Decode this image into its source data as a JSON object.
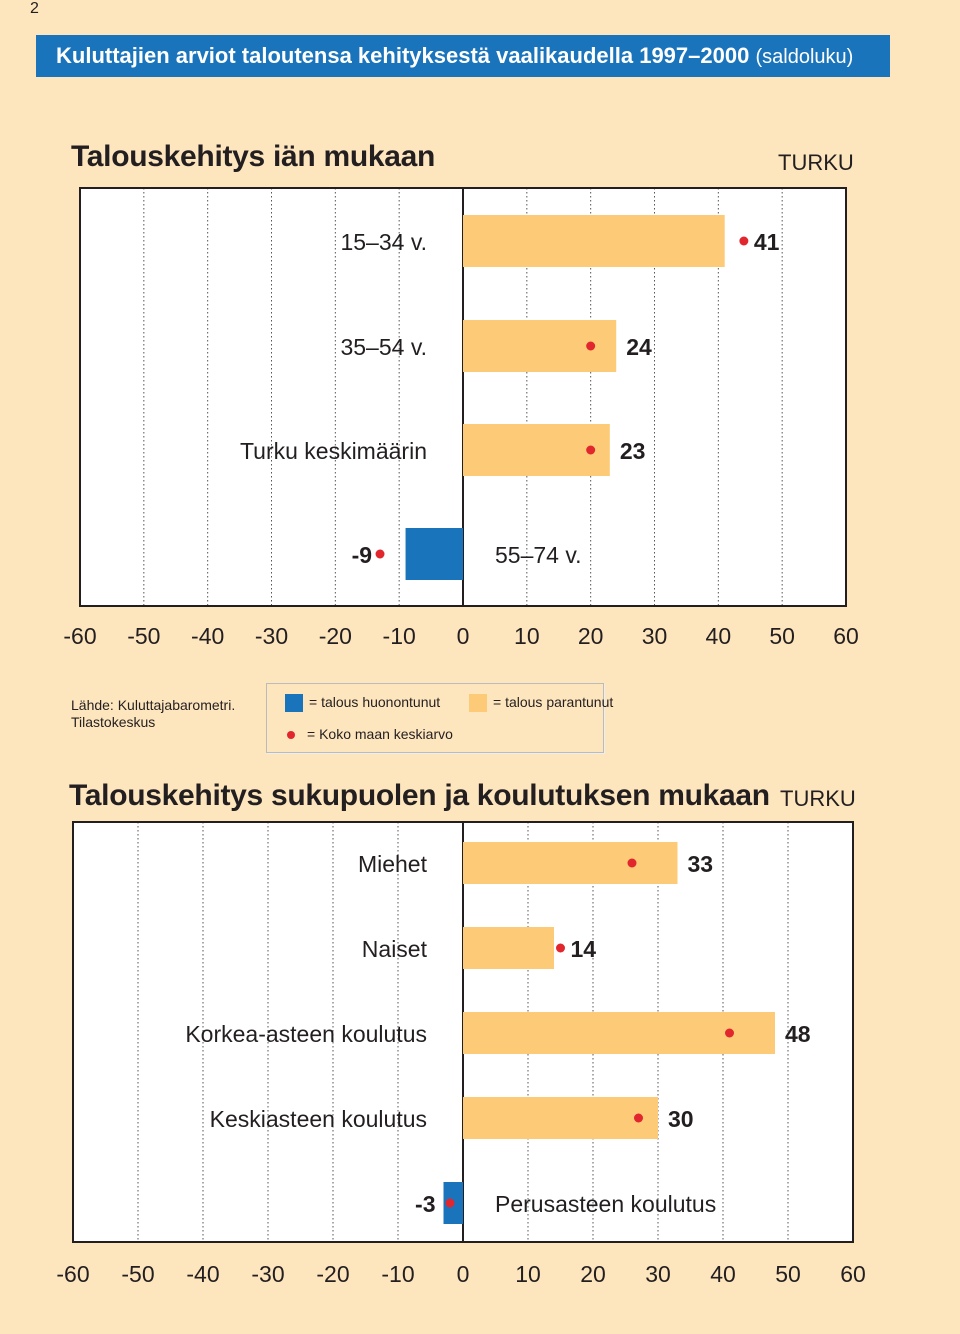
{
  "page_number": "2",
  "banner": {
    "title": "Kuluttajien arviot taloutensa kehityksestä vaalikaudella 1997–2000",
    "subtitle": "(saldoluku)"
  },
  "legend": {
    "decline": "= talous huonontunut",
    "improve": "= talous parantunut",
    "national": "= Koko maan keskiarvo"
  },
  "source": {
    "line1": "Lähde: Kuluttajabarometri.",
    "line2": "Tilastokeskus"
  },
  "colors": {
    "positive": "#fdcb78",
    "negative": "#1a74bc",
    "dot": "#e1262d",
    "background": "#fde5be"
  },
  "chart_data": [
    {
      "type": "bar",
      "orientation": "horizontal",
      "title": "Talouskehitys iän mukaan",
      "city": "TURKU",
      "categories": [
        "15–34 v.",
        "35–54 v.",
        "Turku keskimäärin",
        "55–74 v."
      ],
      "values": [
        41,
        24,
        23,
        -9
      ],
      "national_average": [
        44,
        20,
        20,
        -13
      ],
      "xlim": [
        -60,
        60
      ],
      "ticks": [
        "-60",
        "-50",
        "-40",
        "-30",
        "-20",
        "-10",
        "0",
        "10",
        "20",
        "30",
        "40",
        "50",
        "60"
      ],
      "grid": true
    },
    {
      "type": "bar",
      "orientation": "horizontal",
      "title": "Talouskehitys sukupuolen ja koulutuksen mukaan",
      "city": "TURKU",
      "categories": [
        "Miehet",
        "Naiset",
        "Korkea-asteen koulutus",
        "Keskiasteen koulutus",
        "Perusasteen koulutus"
      ],
      "values": [
        33,
        14,
        48,
        30,
        -3
      ],
      "national_average": [
        26,
        15,
        41,
        27,
        -2
      ],
      "xlim": [
        -60,
        60
      ],
      "ticks": [
        "-60",
        "-50",
        "-40",
        "-30",
        "-20",
        "-10",
        "0",
        "10",
        "20",
        "30",
        "40",
        "50",
        "60"
      ],
      "grid": true
    }
  ]
}
